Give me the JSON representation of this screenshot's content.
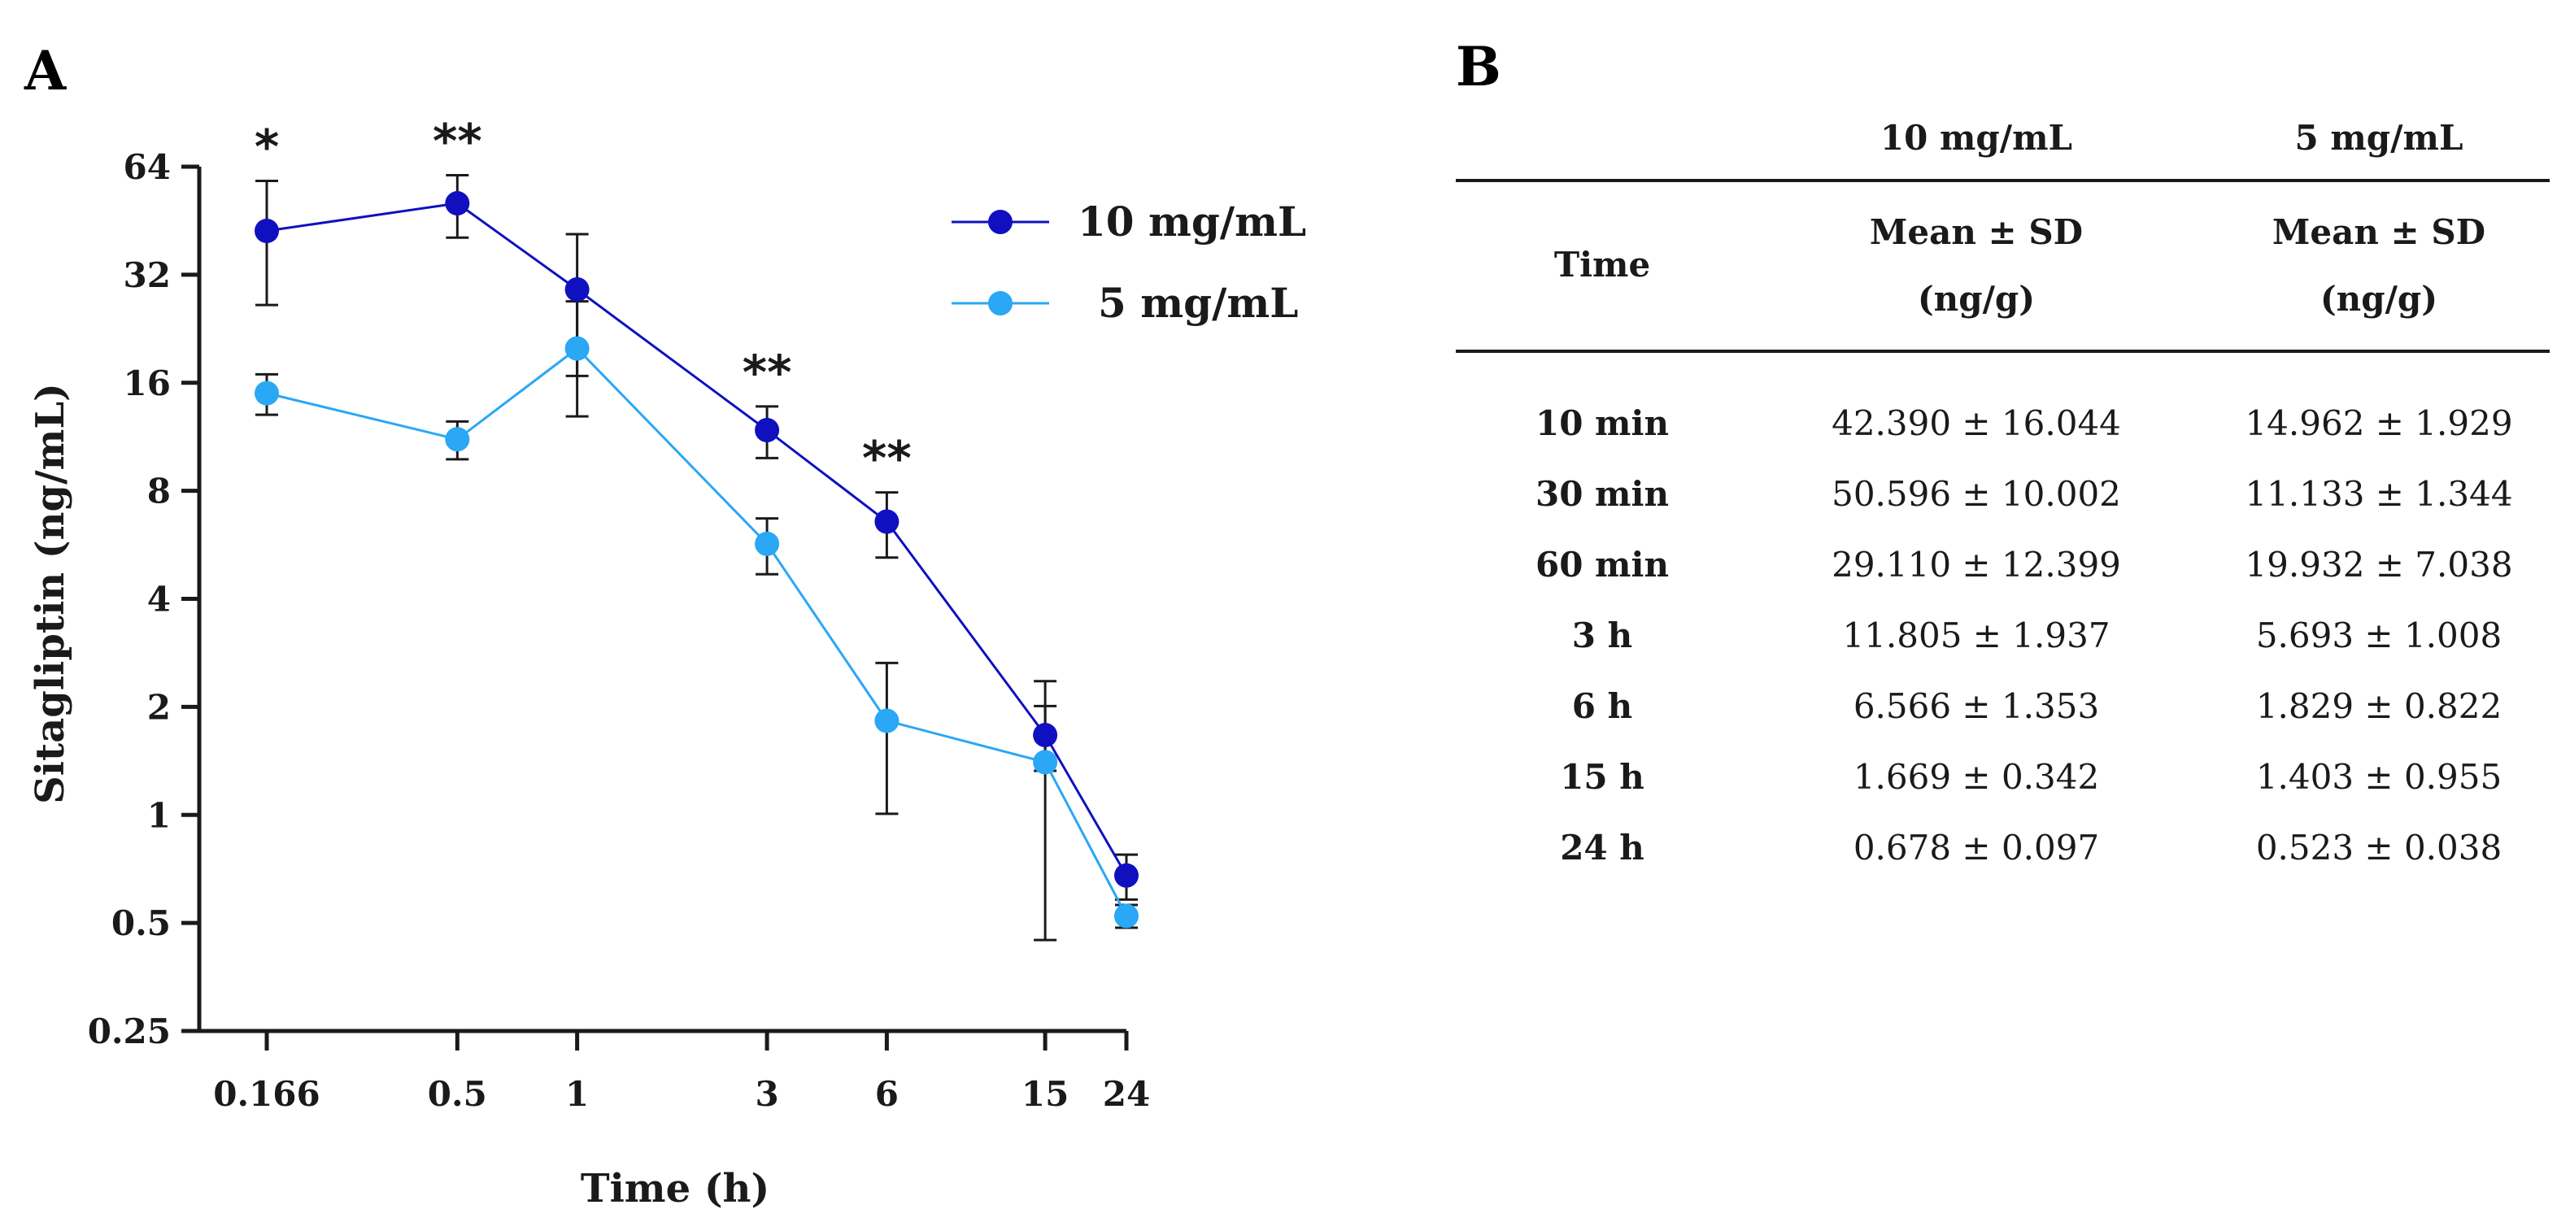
{
  "chart_data": {
    "type": "line",
    "panel_label": "A",
    "xlabel": "Time (h)",
    "ylabel": "Sitagliptin (ng/mL)",
    "x_scale": "log",
    "y_scale": "log2",
    "ylim": [
      0.25,
      64
    ],
    "x_ticks": [
      "0.166",
      "0.5",
      "1",
      "3",
      "6",
      "15",
      "24"
    ],
    "x_values": [
      0.166,
      0.5,
      1,
      3,
      6,
      15,
      24
    ],
    "y_ticks": [
      "0.25",
      "0.5",
      "1",
      "2",
      "4",
      "8",
      "16",
      "32",
      "64"
    ],
    "y_tick_values": [
      0.25,
      0.5,
      1,
      2,
      4,
      8,
      16,
      32,
      64
    ],
    "series": [
      {
        "name": "10 mg/mL",
        "color": "#1010c0",
        "values": [
          42.39,
          50.596,
          29.11,
          11.805,
          6.566,
          1.669,
          0.678
        ],
        "sd": [
          16.044,
          10.002,
          12.399,
          1.937,
          1.353,
          0.342,
          0.097
        ]
      },
      {
        "name": "5 mg/mL",
        "color": "#2aa7f5",
        "values": [
          14.962,
          11.133,
          19.932,
          5.693,
          1.829,
          1.403,
          0.523
        ],
        "sd": [
          1.929,
          1.344,
          7.038,
          1.008,
          0.822,
          0.955,
          0.038
        ]
      }
    ],
    "significance": [
      {
        "x": 0.166,
        "label": "*"
      },
      {
        "x": 0.5,
        "label": "**"
      },
      {
        "x": 3,
        "label": "**"
      },
      {
        "x": 6,
        "label": "**"
      }
    ],
    "legend": [
      "10 mg/mL",
      "5 mg/mL"
    ],
    "legend_position": "top-right"
  },
  "table": {
    "panel_label": "B",
    "group_headers": [
      "10 mg/mL",
      "5 mg/mL"
    ],
    "time_header": "Time",
    "stat_header_line1": "Mean ± SD",
    "stat_header_line2": "(ng/g)",
    "rows": [
      {
        "time": "10 min",
        "v10": "42.390 ± 16.044",
        "v5": "14.962 ± 1.929"
      },
      {
        "time": "30 min",
        "v10": "50.596 ± 10.002",
        "v5": "11.133 ± 1.344"
      },
      {
        "time": "60 min",
        "v10": "29.110 ± 12.399",
        "v5": "19.932 ± 7.038"
      },
      {
        "time": "3 h",
        "v10": "11.805 ± 1.937",
        "v5": "5.693 ± 1.008"
      },
      {
        "time": "6 h",
        "v10": "6.566 ± 1.353",
        "v5": "1.829 ± 0.822"
      },
      {
        "time": "15 h",
        "v10": "1.669 ± 0.342",
        "v5": "1.403 ± 0.955"
      },
      {
        "time": "24 h",
        "v10": "0.678 ± 0.097",
        "v5": "0.523 ± 0.038"
      }
    ]
  }
}
